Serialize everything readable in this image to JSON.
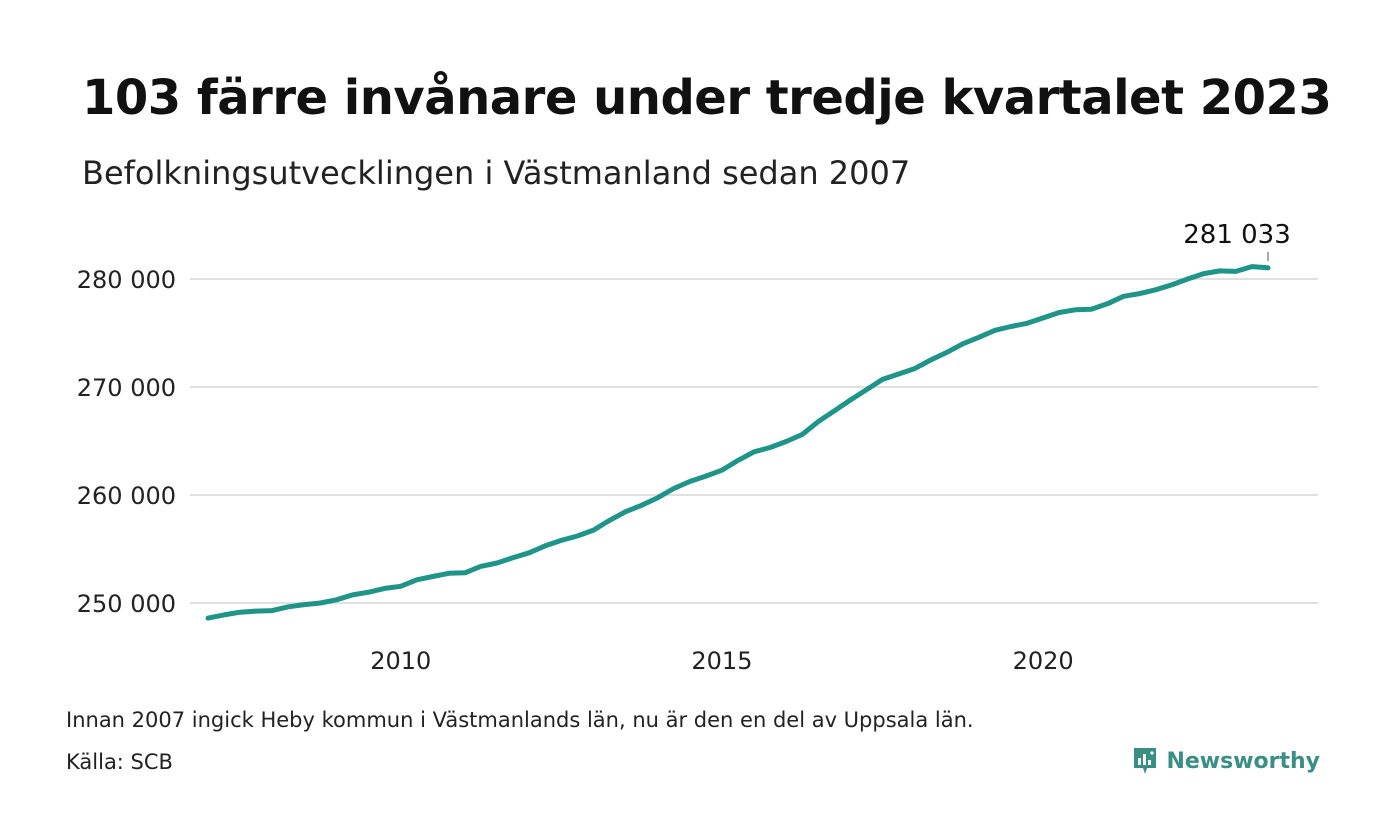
{
  "header": {
    "title": "103 färre invånare under tredje kvartalet 2023",
    "subtitle": "Befolkningsutvecklingen i Västmanland sedan 2007"
  },
  "footer": {
    "note": "Innan 2007 ingick Heby kommun i Västmanlands län, nu är den en del av Uppsala län.",
    "source": "Källa: SCB",
    "brand": "Newsworthy",
    "brand_icon": "bar-chart-speech-bubble-icon"
  },
  "colors": {
    "line": "#1f9488",
    "grid": "#e0e0e0",
    "brand": "#3a8f84"
  },
  "chart_data": {
    "type": "line",
    "x_ticks": [
      "2010",
      "2015",
      "2020"
    ],
    "y_ticks": [
      "250 000",
      "260 000",
      "270 000",
      "280 000"
    ],
    "ylim": [
      248000,
      282500
    ],
    "grid": "horizontal",
    "end_label": "281 033",
    "series": [
      {
        "x": [
          "2007-Q1",
          "2007-Q2",
          "2007-Q3",
          "2007-Q4",
          "2008-Q1",
          "2008-Q2",
          "2008-Q3",
          "2008-Q4",
          "2009-Q1",
          "2009-Q2",
          "2009-Q3",
          "2009-Q4",
          "2010-Q1",
          "2010-Q2",
          "2010-Q3",
          "2010-Q4",
          "2011-Q1",
          "2011-Q2",
          "2011-Q3",
          "2011-Q4",
          "2012-Q1",
          "2012-Q2",
          "2012-Q3",
          "2012-Q4",
          "2013-Q1",
          "2013-Q2",
          "2013-Q3",
          "2013-Q4",
          "2014-Q1",
          "2014-Q2",
          "2014-Q3",
          "2014-Q4",
          "2015-Q1",
          "2015-Q2",
          "2015-Q3",
          "2015-Q4",
          "2016-Q1",
          "2016-Q2",
          "2016-Q3",
          "2016-Q4",
          "2017-Q1",
          "2017-Q2",
          "2017-Q3",
          "2017-Q4",
          "2018-Q1",
          "2018-Q2",
          "2018-Q3",
          "2018-Q4",
          "2019-Q1",
          "2019-Q2",
          "2019-Q3",
          "2019-Q4",
          "2020-Q1",
          "2020-Q2",
          "2020-Q3",
          "2020-Q4",
          "2021-Q1",
          "2021-Q2",
          "2021-Q3",
          "2021-Q4",
          "2022-Q1",
          "2022-Q2",
          "2022-Q3",
          "2022-Q4",
          "2023-Q1",
          "2023-Q2",
          "2023-Q3"
        ],
        "values": [
          248600,
          248900,
          249150,
          249250,
          249300,
          249650,
          249850,
          250000,
          250300,
          250750,
          251000,
          251350,
          251550,
          252150,
          252450,
          252750,
          252800,
          253400,
          253700,
          254200,
          254650,
          255300,
          255800,
          256200,
          256750,
          257650,
          258450,
          259050,
          259750,
          260600,
          261250,
          261750,
          262300,
          263200,
          264000,
          264400,
          264950,
          265600,
          266800,
          267800,
          268800,
          269750,
          270700,
          271200,
          271700,
          272500,
          273200,
          274000,
          274600,
          275250,
          275600,
          275900,
          276400,
          276900,
          277150,
          277200,
          277700,
          278400,
          278650,
          279000,
          279450,
          280000,
          280500,
          280750,
          280700,
          281150,
          281033
        ]
      }
    ]
  }
}
